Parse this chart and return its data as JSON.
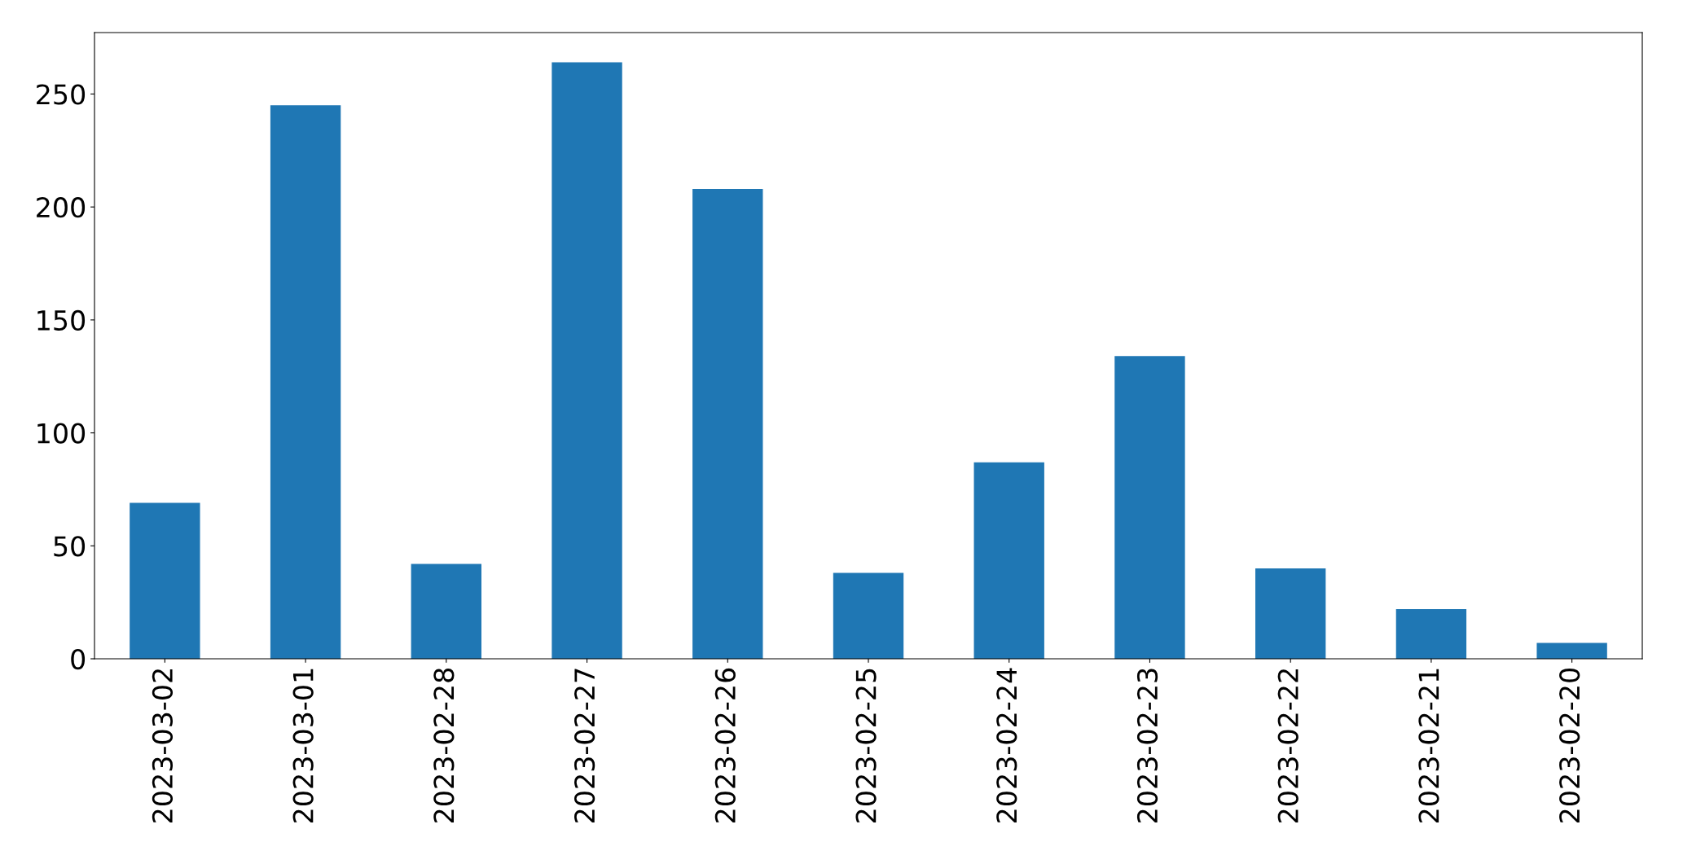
{
  "chart_data": {
    "type": "bar",
    "categories": [
      "2023-03-02",
      "2023-03-01",
      "2023-02-28",
      "2023-02-27",
      "2023-02-26",
      "2023-02-25",
      "2023-02-24",
      "2023-02-23",
      "2023-02-22",
      "2023-02-21",
      "2023-02-20"
    ],
    "values": [
      69,
      245,
      42,
      264,
      208,
      38,
      87,
      134,
      40,
      22,
      7
    ],
    "color": "#1f77b4",
    "ylim": [
      0,
      277.2
    ],
    "yticks": [
      0,
      50,
      100,
      150,
      200,
      250
    ],
    "grid": false,
    "legend": false
  }
}
